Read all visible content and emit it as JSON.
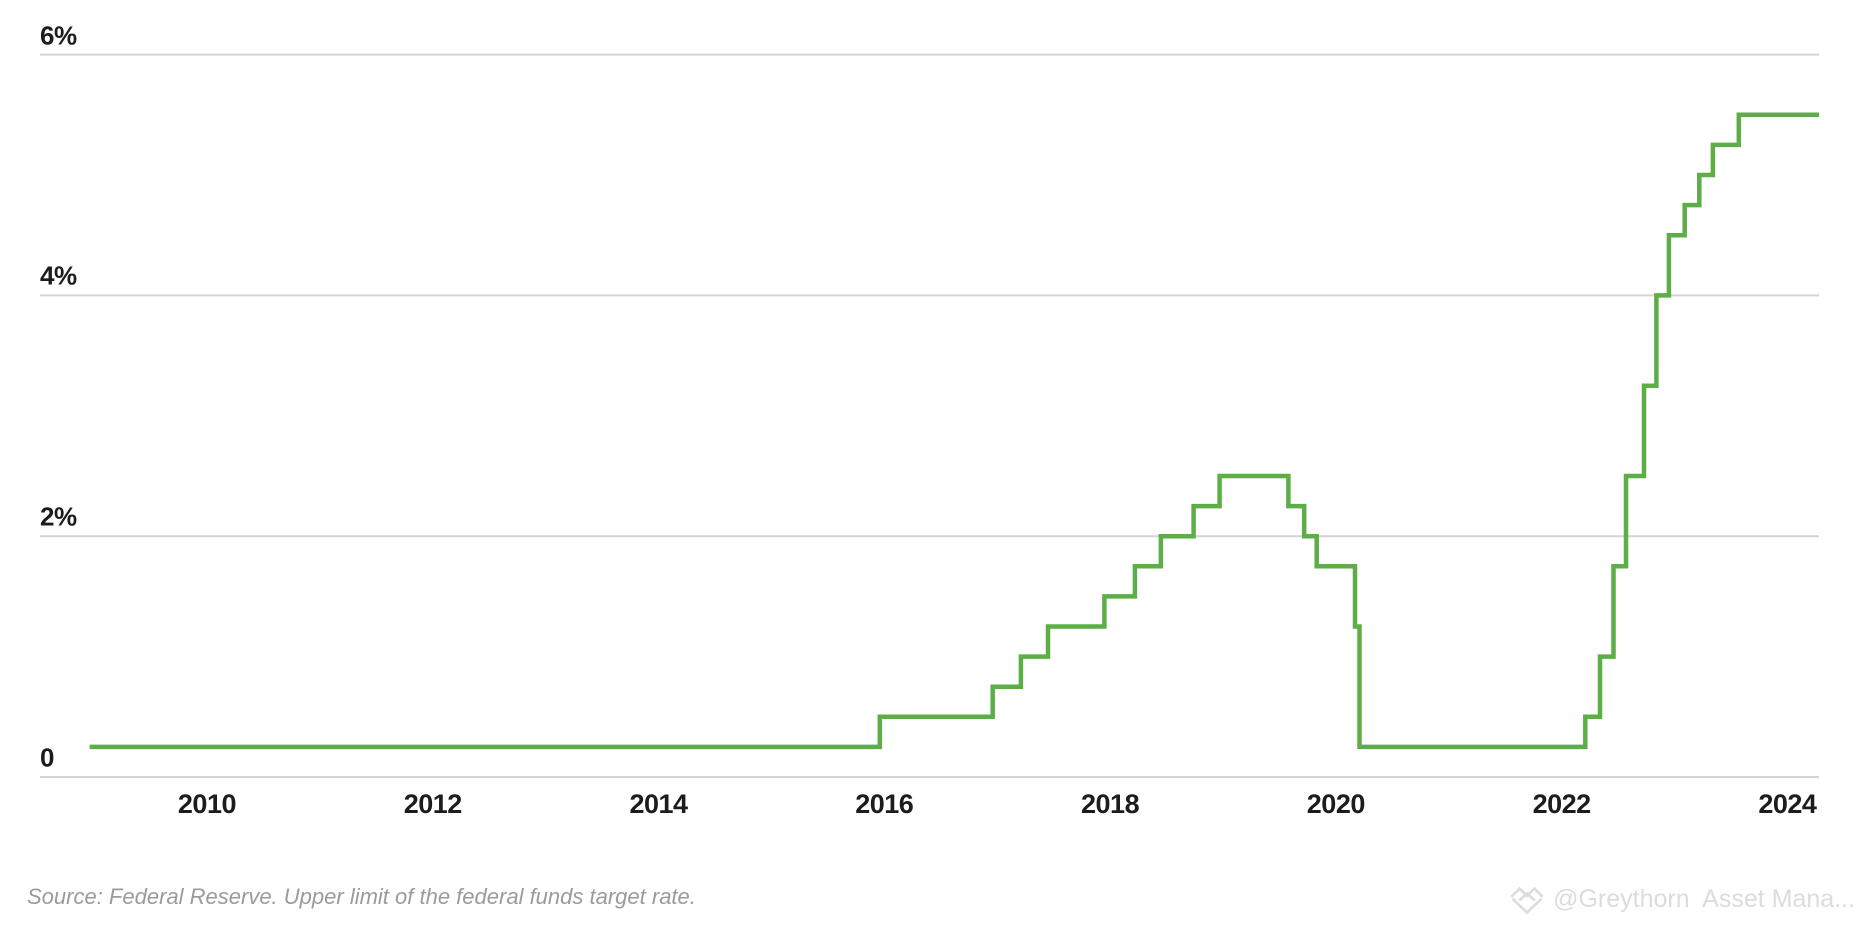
{
  "chart_data": {
    "type": "line",
    "subtype": "step-after",
    "title": "",
    "xlabel": "",
    "ylabel": "",
    "grid": "horizontal",
    "legend_position": "none",
    "x_range": [
      2008.955,
      2024.28
    ],
    "y_range": [
      0,
      6.45
    ],
    "x_ticks": [
      2010,
      2012,
      2014,
      2016,
      2018,
      2020,
      2022,
      2024
    ],
    "y_ticks": [
      {
        "value": 0,
        "label": "0"
      },
      {
        "value": 2,
        "label": "2%"
      },
      {
        "value": 4,
        "label": "4%"
      },
      {
        "value": 6,
        "label": "6%"
      }
    ],
    "series": [
      {
        "name": "Upper limit of the federal funds target rate",
        "color": "#5dae47",
        "end_x": 2024.28,
        "points": [
          {
            "x": 2008.96,
            "y": 0.25
          },
          {
            "x": 2015.96,
            "y": 0.5
          },
          {
            "x": 2016.96,
            "y": 0.75
          },
          {
            "x": 2017.21,
            "y": 1.0
          },
          {
            "x": 2017.45,
            "y": 1.25
          },
          {
            "x": 2017.95,
            "y": 1.5
          },
          {
            "x": 2018.22,
            "y": 1.75
          },
          {
            "x": 2018.45,
            "y": 2.0
          },
          {
            "x": 2018.74,
            "y": 2.25
          },
          {
            "x": 2018.97,
            "y": 2.5
          },
          {
            "x": 2019.58,
            "y": 2.25
          },
          {
            "x": 2019.72,
            "y": 2.0
          },
          {
            "x": 2019.83,
            "y": 1.75
          },
          {
            "x": 2020.17,
            "y": 1.25
          },
          {
            "x": 2020.21,
            "y": 0.25
          },
          {
            "x": 2022.21,
            "y": 0.5
          },
          {
            "x": 2022.34,
            "y": 1.0
          },
          {
            "x": 2022.46,
            "y": 1.75
          },
          {
            "x": 2022.57,
            "y": 2.5
          },
          {
            "x": 2022.73,
            "y": 3.25
          },
          {
            "x": 2022.84,
            "y": 4.0
          },
          {
            "x": 2022.95,
            "y": 4.5
          },
          {
            "x": 2023.09,
            "y": 4.75
          },
          {
            "x": 2023.22,
            "y": 5.0
          },
          {
            "x": 2023.34,
            "y": 5.25
          },
          {
            "x": 2023.57,
            "y": 5.5
          }
        ]
      }
    ]
  },
  "footer": {
    "source_text": "Source: Federal Reserve. Upper limit of the federal funds target rate.",
    "watermark_text": "@Greythorn  Asset Mana..."
  },
  "colors": {
    "line": "#5dae47",
    "grid": "#d4d4d4",
    "tick_label": "#1c1c1c",
    "source_text": "#9b9b9b",
    "watermark": "#dcdcdc"
  }
}
